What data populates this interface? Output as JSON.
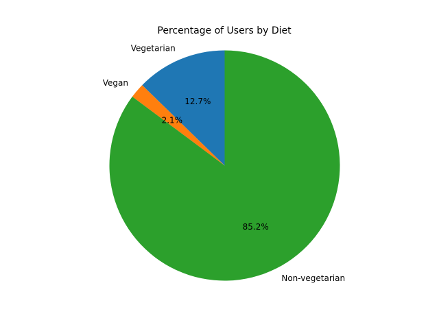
{
  "chart_data": {
    "type": "pie",
    "title": "Percentage of Users by Diet",
    "startangle": 90,
    "direction": "counterclockwise",
    "slices": [
      {
        "label": "Vegetarian",
        "value": 12.7,
        "pct_label": "12.7%",
        "color": "#1f77b4"
      },
      {
        "label": "Vegan",
        "value": 2.1,
        "pct_label": "2.1%",
        "color": "#ff7f0e"
      },
      {
        "label": "Non-vegetarian",
        "value": 85.2,
        "pct_label": "85.2%",
        "color": "#2ca02c"
      }
    ]
  }
}
